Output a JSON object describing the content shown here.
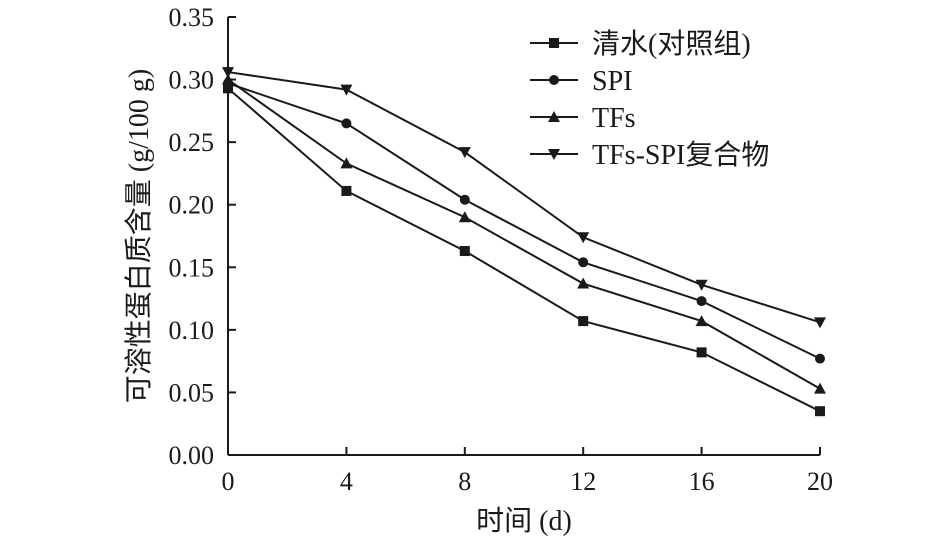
{
  "chart_data": {
    "type": "line",
    "title": "",
    "xlabel": "时间 (d)",
    "ylabel": "可溶性蛋白质含量 (g/100 g)",
    "x": [
      0,
      4,
      8,
      12,
      16,
      20
    ],
    "xticks": [
      "0",
      "4",
      "8",
      "12",
      "16",
      "20"
    ],
    "xlim": [
      0,
      20
    ],
    "yticks": [
      "0.00",
      "0.05",
      "0.10",
      "0.15",
      "0.20",
      "0.25",
      "0.30",
      "0.35"
    ],
    "ylim": [
      0,
      0.35
    ],
    "grid": false,
    "legend_position": "top-right",
    "series": [
      {
        "name": "清水(对照组)",
        "marker": "square",
        "values": [
          0.293,
          0.211,
          0.163,
          0.107,
          0.082,
          0.035
        ]
      },
      {
        "name": "SPI",
        "marker": "circle",
        "values": [
          0.297,
          0.265,
          0.204,
          0.154,
          0.123,
          0.077
        ]
      },
      {
        "name": "TFs",
        "marker": "triangle-up",
        "values": [
          0.3,
          0.233,
          0.19,
          0.137,
          0.107,
          0.053
        ]
      },
      {
        "name": "TFs-SPI复合物",
        "marker": "triangle-down",
        "values": [
          0.306,
          0.292,
          0.242,
          0.174,
          0.136,
          0.106
        ]
      }
    ]
  }
}
